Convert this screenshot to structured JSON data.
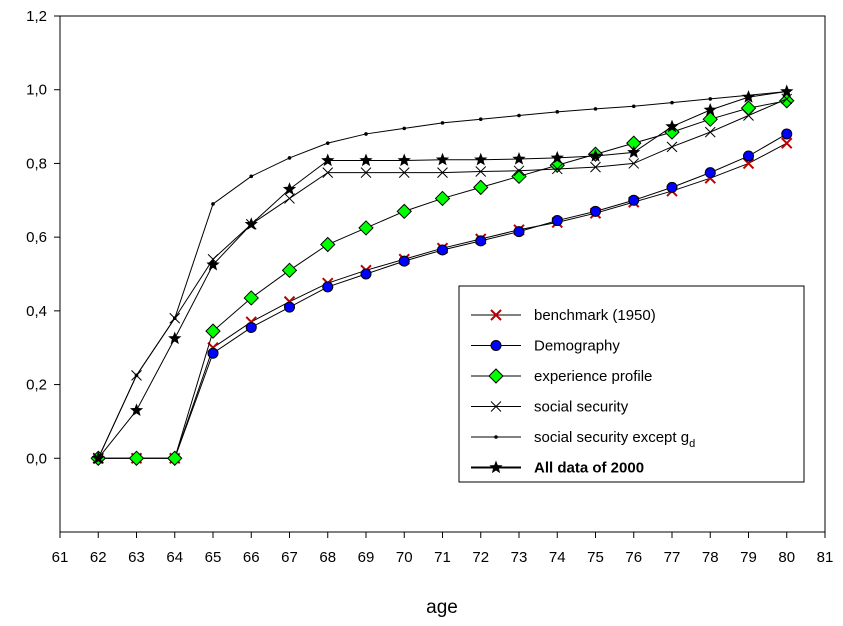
{
  "chart_data": {
    "type": "line",
    "xlabel": "age",
    "ylabel": "",
    "xlim": [
      61,
      81
    ],
    "ylim": [
      -0.2,
      1.2
    ],
    "x_ticks": [
      "61",
      "62",
      "63",
      "64",
      "65",
      "66",
      "67",
      "68",
      "69",
      "70",
      "71",
      "72",
      "73",
      "74",
      "75",
      "76",
      "77",
      "78",
      "79",
      "80",
      "81"
    ],
    "y_ticks": [
      "0,0",
      "0,2",
      "0,4",
      "0,6",
      "0,8",
      "1,0",
      "1,2"
    ],
    "grid": false,
    "legend_position": "bottom-right",
    "x": [
      62,
      63,
      64,
      65,
      66,
      67,
      68,
      69,
      70,
      71,
      72,
      73,
      74,
      75,
      76,
      77,
      78,
      79,
      80
    ],
    "series": [
      {
        "name": "benchmark (1950)",
        "color": "#c00000",
        "marker": "x-cross",
        "values": [
          0,
          0,
          0,
          0.3,
          0.37,
          0.425,
          0.475,
          0.51,
          0.54,
          0.57,
          0.595,
          0.62,
          0.64,
          0.665,
          0.695,
          0.725,
          0.76,
          0.8,
          0.855
        ]
      },
      {
        "name": "Demography",
        "color": "#0000ff",
        "marker": "circle",
        "values": [
          0,
          0,
          0,
          0.285,
          0.355,
          0.41,
          0.465,
          0.5,
          0.535,
          0.565,
          0.59,
          0.615,
          0.645,
          0.67,
          0.7,
          0.735,
          0.775,
          0.82,
          0.88
        ]
      },
      {
        "name": "experience profile",
        "color": "#00ff00",
        "marker": "diamond",
        "values": [
          0,
          0,
          0,
          0.345,
          0.435,
          0.51,
          0.58,
          0.625,
          0.67,
          0.705,
          0.735,
          0.765,
          0.795,
          0.825,
          0.855,
          0.885,
          0.92,
          0.95,
          0.97
        ]
      },
      {
        "name": "social security",
        "color": "#000000",
        "marker": "x",
        "values": [
          0,
          0.225,
          0.38,
          0.54,
          0.635,
          0.705,
          0.775,
          0.775,
          0.775,
          0.775,
          0.778,
          0.78,
          0.785,
          0.79,
          0.8,
          0.845,
          0.885,
          0.93,
          0.975
        ]
      },
      {
        "name": "social security except g",
        "name_subscript": "d",
        "color": "#000000",
        "marker": "dot",
        "values": [
          0,
          0.225,
          0.38,
          0.69,
          0.765,
          0.815,
          0.855,
          0.88,
          0.895,
          0.91,
          0.92,
          0.93,
          0.94,
          0.948,
          0.955,
          0.965,
          0.975,
          0.985,
          0.995
        ]
      },
      {
        "name": "All data of 2000",
        "color": "#000000",
        "marker": "star",
        "bold": true,
        "values": [
          0,
          0.13,
          0.325,
          0.525,
          0.635,
          0.73,
          0.808,
          0.808,
          0.808,
          0.81,
          0.81,
          0.812,
          0.815,
          0.82,
          0.83,
          0.9,
          0.945,
          0.98,
          0.995
        ]
      }
    ]
  }
}
